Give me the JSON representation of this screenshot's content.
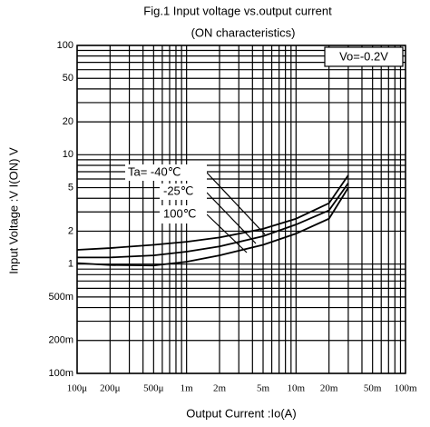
{
  "chart_data": {
    "type": "line",
    "title": "Fig.1 Input voltage vs.output current",
    "subtitle": "(ON characteristics)",
    "x_label": "Output Current :Io(A)",
    "y_label": "Input Voltage :V I(ON) V",
    "annotation": "Vo=-0.2V",
    "log_x": true,
    "log_y": true,
    "grid": true,
    "x": [
      0.0001,
      0.0002,
      0.0005,
      0.001,
      0.002,
      0.005,
      0.01,
      0.02,
      0.03
    ],
    "series": [
      {
        "name": "Ta= -40℃",
        "color": "#000000",
        "values": [
          1.35,
          1.4,
          1.5,
          1.6,
          1.75,
          2.1,
          2.6,
          3.6,
          6.5
        ]
      },
      {
        "name": "-25℃",
        "color": "#000000",
        "values": [
          1.15,
          1.15,
          1.2,
          1.3,
          1.45,
          1.8,
          2.3,
          3.1,
          5.5
        ]
      },
      {
        "name": "100℃",
        "color": "#000000",
        "values": [
          1.02,
          0.98,
          0.97,
          1.05,
          1.2,
          1.5,
          1.9,
          2.6,
          5
        ]
      }
    ],
    "xlim": [
      0.0001,
      0.1
    ],
    "ylim": [
      0.1,
      100
    ],
    "xticks": [
      {
        "value": 0.0001,
        "label": "100μ"
      },
      {
        "value": 0.0002,
        "label": "200μ"
      },
      {
        "value": 0.0005,
        "label": "500μ"
      },
      {
        "value": 0.001,
        "label": "1m"
      },
      {
        "value": 0.002,
        "label": "2m"
      },
      {
        "value": 0.005,
        "label": "5m"
      },
      {
        "value": 0.01,
        "label": "10m"
      },
      {
        "value": 0.02,
        "label": "20m"
      },
      {
        "value": 0.05,
        "label": "50m"
      },
      {
        "value": 0.1,
        "label": "100m"
      }
    ],
    "yticks": [
      {
        "value": 0.1,
        "label": "100m"
      },
      {
        "value": 0.2,
        "label": "200m"
      },
      {
        "value": 0.5,
        "label": "500m"
      },
      1,
      2,
      5,
      10,
      20,
      50,
      100
    ],
    "xgrid": [
      0.0003,
      0.0004,
      0.0006,
      0.0007,
      0.0008,
      0.0009,
      0.003,
      0.004,
      0.006,
      0.007,
      0.008,
      0.009,
      0.03,
      0.04,
      0.06,
      0.07,
      0.08,
      0.09
    ],
    "ygrid": [
      0.3,
      0.4,
      0.6,
      0.7,
      0.8,
      0.9,
      3,
      4,
      6,
      7,
      8,
      9,
      30,
      40,
      60,
      70,
      80,
      90
    ]
  }
}
